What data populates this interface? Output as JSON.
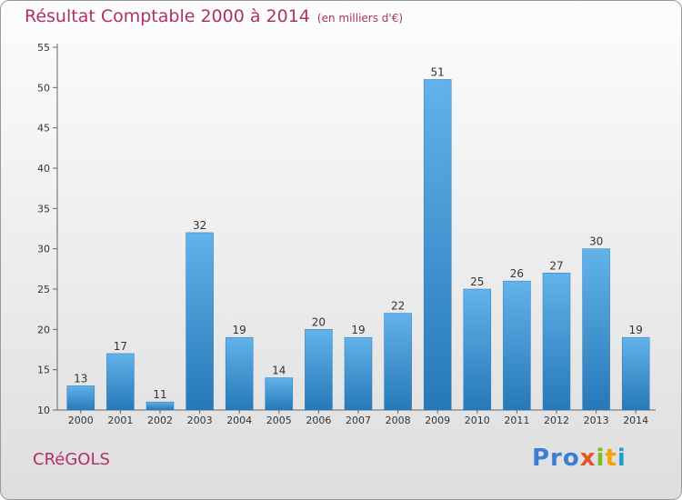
{
  "title": "Résultat Comptable 2000 à 2014",
  "unit_note": "(en milliers d'€)",
  "commune": "CRéGOLS",
  "logo": "Proxiti",
  "colors": {
    "bar_top": "#62b3ea",
    "bar_bottom": "#2678b8",
    "title": "#b0306a",
    "logo_blue": "#3a7fd4",
    "logo_orange": "#e0572a",
    "logo_green": "#7dbb2a"
  },
  "chart_data": {
    "type": "bar",
    "title": "Résultat Comptable 2000 à 2014",
    "ylabel": "",
    "xlabel": "",
    "categories": [
      "2000",
      "2001",
      "2002",
      "2003",
      "2004",
      "2005",
      "2006",
      "2007",
      "2008",
      "2009",
      "2010",
      "2011",
      "2012",
      "2013",
      "2014"
    ],
    "values": [
      13,
      17,
      11,
      32,
      19,
      14,
      20,
      19,
      22,
      51,
      25,
      26,
      27,
      30,
      19
    ],
    "ylim": [
      10,
      55
    ],
    "yticks": [
      10,
      15,
      20,
      25,
      30,
      35,
      40,
      45,
      50,
      55
    ],
    "grid": false,
    "data_labels": true
  }
}
